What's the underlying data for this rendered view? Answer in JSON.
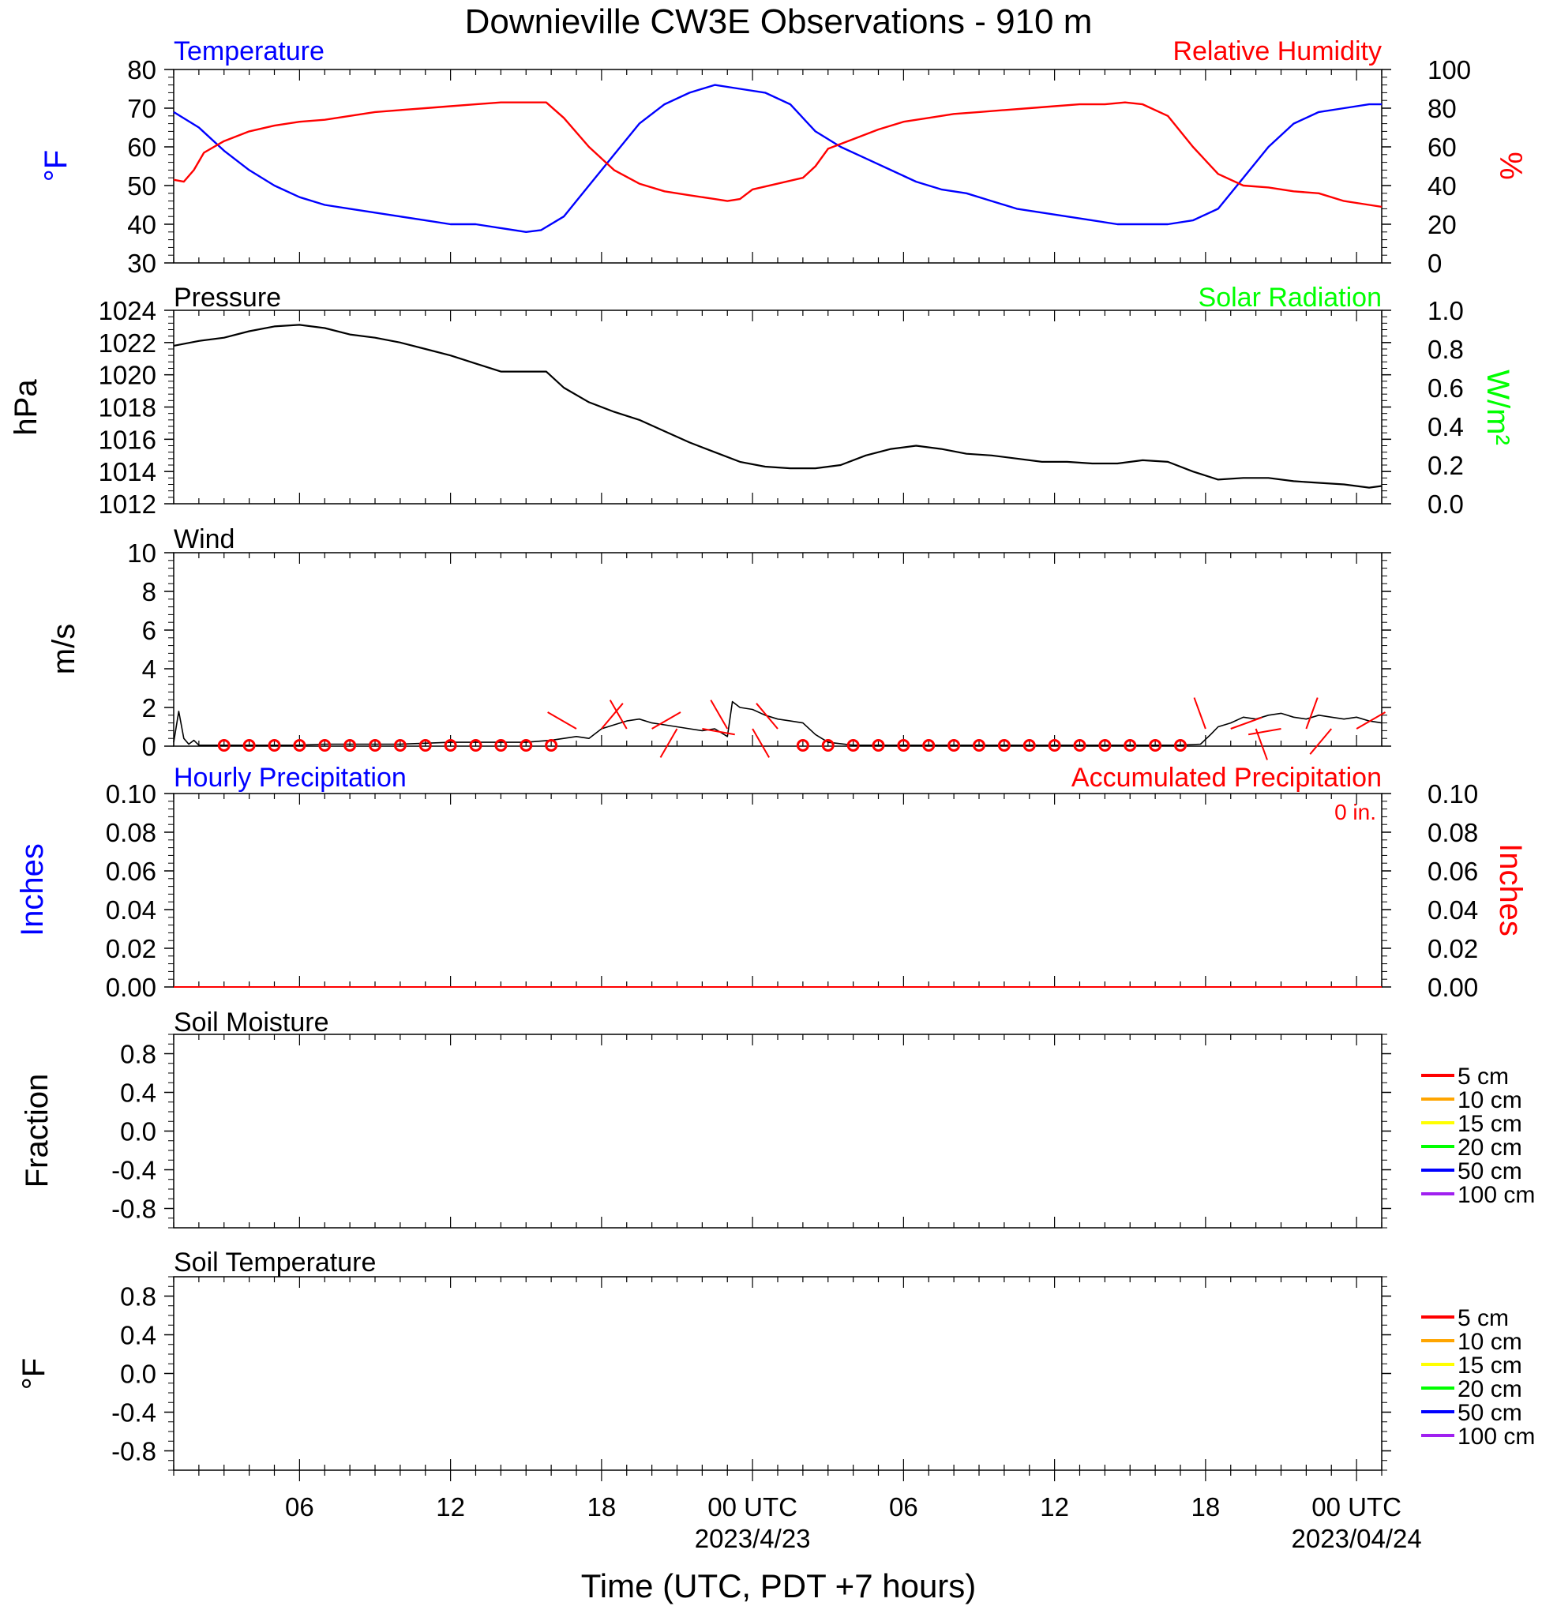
{
  "title": "Downieville CW3E Observations - 910 m",
  "xaxis": {
    "label": "Time (UTC, PDT +7 hours)",
    "ticks": [
      {
        "h": 6,
        "label": "06",
        "sub": ""
      },
      {
        "h": 12,
        "label": "12",
        "sub": ""
      },
      {
        "h": 18,
        "label": "18",
        "sub": ""
      },
      {
        "h": 24,
        "label": "00 UTC",
        "sub": "2023/4/23"
      },
      {
        "h": 30,
        "label": "06",
        "sub": ""
      },
      {
        "h": 36,
        "label": "12",
        "sub": ""
      },
      {
        "h": 42,
        "label": "18",
        "sub": ""
      },
      {
        "h": 48,
        "label": "00 UTC",
        "sub": "2023/04/24"
      }
    ],
    "range_hours": [
      1,
      49
    ]
  },
  "legend_depths": [
    {
      "label": "5 cm",
      "color": "#ff0000"
    },
    {
      "label": "10 cm",
      "color": "#ffa500"
    },
    {
      "label": "15 cm",
      "color": "#ffff00"
    },
    {
      "label": "20 cm",
      "color": "#00ff00"
    },
    {
      "label": "50 cm",
      "color": "#0000ff"
    },
    {
      "label": "100 cm",
      "color": "#a020f0"
    }
  ],
  "panels": {
    "temp_rh": {
      "left_title": "Temperature",
      "right_title": "Relative Humidity",
      "left_unit": "°F",
      "right_unit": "%",
      "left_color": "#0000ff",
      "right_color": "#ff0000",
      "left_ticks": [
        "30",
        "40",
        "50",
        "60",
        "70",
        "80"
      ],
      "right_ticks": [
        "0",
        "20",
        "40",
        "60",
        "80",
        "100"
      ]
    },
    "pressure": {
      "left_title": "Pressure",
      "right_title": "Solar Radiation",
      "left_unit": "hPa",
      "right_unit": "W/m²",
      "right_color": "#00ff00",
      "left_ticks": [
        "1012",
        "1014",
        "1016",
        "1018",
        "1020",
        "1022",
        "1024"
      ],
      "right_ticks": [
        "0.0",
        "0.2",
        "0.4",
        "0.6",
        "0.8",
        "1.0"
      ]
    },
    "wind": {
      "left_title": "Wind",
      "left_unit": "m/s",
      "left_ticks": [
        "0",
        "2",
        "4",
        "6",
        "8",
        "10"
      ]
    },
    "precip": {
      "left_title": "Hourly Precipitation",
      "right_title": "Accumulated Precipitation",
      "left_unit": "Inches",
      "right_unit": "Inches",
      "left_color": "#0000ff",
      "right_color": "#ff0000",
      "accum_note": "0 in.",
      "left_ticks": [
        "0.00",
        "0.02",
        "0.04",
        "0.06",
        "0.08",
        "0.10"
      ],
      "right_ticks": [
        "0.00",
        "0.02",
        "0.04",
        "0.06",
        "0.08",
        "0.10"
      ]
    },
    "soil_moisture": {
      "left_title": "Soil Moisture",
      "left_unit": "Fraction",
      "left_ticks": [
        "-0.8",
        "-0.4",
        "0.0",
        "0.4",
        "0.8"
      ]
    },
    "soil_temp": {
      "left_title": "Soil Temperature",
      "left_unit": "°F",
      "left_ticks": [
        "-0.8",
        "-0.4",
        "0.0",
        "0.4",
        "0.8"
      ]
    }
  },
  "chart_data": [
    {
      "type": "line",
      "title": "Temperature",
      "x_unit": "hours since 2023-04-22 00 UTC",
      "ylim": [
        30,
        80
      ],
      "series": [
        {
          "name": "Temperature",
          "color": "#0000ff",
          "x": [
            1,
            2,
            3,
            4,
            5,
            6,
            7,
            8,
            9,
            10,
            11,
            12,
            13,
            14,
            15,
            15.6,
            16.5,
            17.5,
            18.5,
            19.5,
            20.5,
            21.5,
            22.5,
            23.5,
            24.5,
            25.5,
            26.5,
            27.5,
            28.5,
            29.5,
            30.5,
            31.5,
            32.5,
            33.5,
            34.5,
            35.5,
            36.5,
            37.5,
            38.5,
            39.5,
            40.5,
            41.5,
            42.5,
            43.5,
            44.5,
            45.5,
            46.5,
            47.5,
            48.5,
            49
          ],
          "y": [
            69,
            65,
            59,
            54,
            50,
            47,
            45,
            44,
            43,
            42,
            41,
            40,
            40,
            39,
            38,
            38.5,
            42,
            50,
            58,
            66,
            71,
            74,
            76,
            75,
            74,
            71,
            64,
            60,
            57,
            54,
            51,
            49,
            48,
            46,
            44,
            43,
            42,
            41,
            40,
            40,
            40,
            41,
            44,
            52,
            60,
            66,
            69,
            70,
            71,
            71
          ]
        }
      ]
    },
    {
      "type": "line",
      "title": "Relative Humidity",
      "ylim": [
        0,
        100
      ],
      "series": [
        {
          "name": "Relative Humidity",
          "color": "#ff0000",
          "x": [
            1,
            1.4,
            1.8,
            2.2,
            2.6,
            3,
            4,
            5,
            6,
            7,
            8,
            9,
            10,
            11,
            12,
            13,
            14,
            15,
            15.8,
            16.5,
            17.5,
            18.5,
            19.5,
            20.5,
            21.5,
            22.5,
            23,
            23.5,
            24,
            25,
            26,
            26.5,
            27,
            28,
            29,
            30,
            31,
            32,
            33,
            34,
            35,
            36,
            37,
            38,
            38.8,
            39.5,
            40.5,
            41.5,
            42.5,
            43.5,
            44.5,
            45.5,
            46.5,
            47.5,
            48.5,
            49
          ],
          "y": [
            43,
            42,
            48,
            57,
            60,
            63,
            68,
            71,
            73,
            74,
            76,
            78,
            79,
            80,
            81,
            82,
            83,
            83,
            83,
            75,
            60,
            48,
            41,
            37,
            35,
            33,
            32,
            33,
            38,
            41,
            44,
            50,
            59,
            64,
            69,
            73,
            75,
            77,
            78,
            79,
            80,
            81,
            82,
            82,
            83,
            82,
            76,
            60,
            46,
            40,
            39,
            37,
            36,
            32,
            30,
            29
          ]
        }
      ]
    },
    {
      "type": "line",
      "title": "Pressure",
      "ylim": [
        1012,
        1024
      ],
      "series": [
        {
          "name": "Pressure",
          "color": "#000000",
          "x": [
            1,
            2,
            3,
            4,
            5,
            6,
            7,
            8,
            9,
            10,
            11,
            12,
            13,
            14,
            15,
            15.8,
            16.5,
            17.5,
            18.5,
            19.5,
            20.5,
            21.5,
            22.5,
            23.5,
            24.5,
            25.5,
            26.5,
            27.5,
            28.5,
            29.5,
            30.5,
            31.5,
            32.5,
            33.5,
            34.5,
            35.5,
            36.5,
            37.5,
            38.5,
            39.5,
            40.5,
            41.5,
            42.5,
            43.5,
            44.5,
            45.5,
            46.5,
            47.5,
            48.5,
            49
          ],
          "y": [
            1021.8,
            1022.1,
            1022.3,
            1022.7,
            1023.0,
            1023.1,
            1022.9,
            1022.5,
            1022.3,
            1022.0,
            1021.6,
            1021.2,
            1020.7,
            1020.2,
            1020.2,
            1020.2,
            1019.2,
            1018.3,
            1017.7,
            1017.2,
            1016.5,
            1015.8,
            1015.2,
            1014.6,
            1014.3,
            1014.2,
            1014.2,
            1014.4,
            1015.0,
            1015.4,
            1015.6,
            1015.4,
            1015.1,
            1015.0,
            1014.8,
            1014.6,
            1014.6,
            1014.5,
            1014.5,
            1014.7,
            1014.6,
            1014.0,
            1013.5,
            1013.6,
            1013.6,
            1013.4,
            1013.3,
            1013.2,
            1013.0,
            1013.1
          ]
        }
      ]
    },
    {
      "type": "line",
      "title": "Wind",
      "ylim": [
        0,
        10
      ],
      "series": [
        {
          "name": "Wind",
          "color": "#000000",
          "x": [
            1,
            1.2,
            1.4,
            1.6,
            1.8,
            2,
            3,
            4,
            5,
            6,
            7,
            8,
            9,
            10,
            11,
            12,
            13,
            14,
            15,
            16,
            17,
            17.5,
            18,
            18.5,
            19,
            19.5,
            20,
            20.5,
            21,
            21.5,
            22,
            22.5,
            23,
            23.2,
            23.5,
            24,
            24.5,
            25,
            25.5,
            26,
            26.5,
            27,
            28,
            29,
            30,
            31,
            32,
            33,
            34,
            35,
            36,
            37,
            38,
            39,
            40,
            41,
            41.8,
            42.2,
            42.5,
            43,
            43.5,
            44,
            44.5,
            45,
            45.5,
            46,
            46.5,
            47,
            47.5,
            48,
            48.5,
            49
          ],
          "y": [
            0.2,
            1.8,
            0.4,
            0.1,
            0.3,
            0.05,
            0.05,
            0.05,
            0.05,
            0.05,
            0.1,
            0.1,
            0.1,
            0.1,
            0.15,
            0.2,
            0.2,
            0.2,
            0.2,
            0.3,
            0.5,
            0.4,
            0.9,
            1.1,
            1.3,
            1.4,
            1.2,
            1.1,
            1.0,
            0.9,
            0.8,
            0.9,
            0.5,
            2.3,
            2.0,
            1.9,
            1.6,
            1.4,
            1.3,
            1.2,
            0.6,
            0.2,
            0.05,
            0.05,
            0.05,
            0.05,
            0.05,
            0.05,
            0.05,
            0.05,
            0.05,
            0.05,
            0.05,
            0.05,
            0.05,
            0.05,
            0.1,
            0.6,
            1.0,
            1.2,
            1.5,
            1.4,
            1.6,
            1.7,
            1.5,
            1.4,
            1.6,
            1.5,
            1.4,
            1.5,
            1.3,
            1.2
          ]
        }
      ],
      "barb_hours": [
        3,
        4,
        5,
        6,
        7,
        8,
        9,
        10,
        11,
        12,
        13,
        14,
        15,
        16,
        26,
        27,
        28,
        29,
        30,
        31,
        32,
        33,
        34,
        35,
        36,
        37,
        38,
        39,
        40,
        41
      ]
    },
    {
      "type": "line",
      "title": "Hourly Precipitation",
      "ylim": [
        0,
        0.1
      ],
      "series": [
        {
          "name": "Hourly Precipitation",
          "color": "#0000ff",
          "x": [
            1,
            49
          ],
          "y": [
            0,
            0
          ]
        },
        {
          "name": "Accumulated Precipitation",
          "color": "#ff0000",
          "x": [
            1,
            49
          ],
          "y": [
            0,
            0
          ]
        }
      ]
    },
    {
      "type": "line",
      "title": "Soil Moisture",
      "ylim": [
        -1,
        1
      ],
      "series": []
    },
    {
      "type": "line",
      "title": "Soil Temperature",
      "ylim": [
        -1,
        1
      ],
      "series": []
    }
  ]
}
